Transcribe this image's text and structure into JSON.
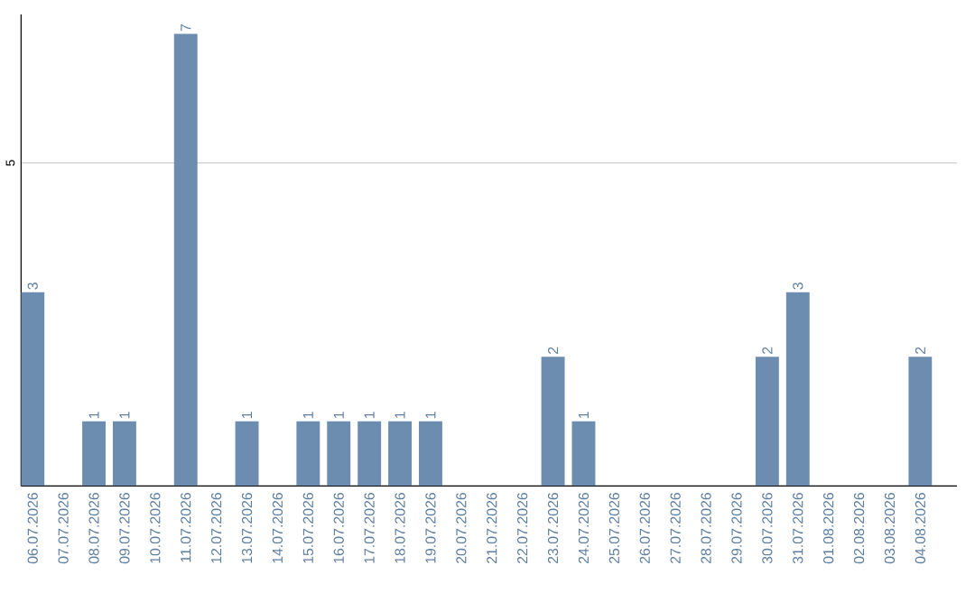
{
  "chart_data": {
    "type": "bar",
    "categories": [
      "06.07.2026",
      "07.07.2026",
      "08.07.2026",
      "09.07.2026",
      "10.07.2026",
      "11.07.2026",
      "12.07.2026",
      "13.07.2026",
      "14.07.2026",
      "15.07.2026",
      "16.07.2026",
      "17.07.2026",
      "18.07.2026",
      "19.07.2026",
      "20.07.2026",
      "21.07.2026",
      "22.07.2026",
      "23.07.2026",
      "24.07.2026",
      "25.07.2026",
      "26.07.2026",
      "27.07.2026",
      "28.07.2026",
      "29.07.2026",
      "30.07.2026",
      "31.07.2026",
      "01.08.2026",
      "02.08.2026",
      "03.08.2026",
      "04.08.2026"
    ],
    "values": [
      3,
      0,
      1,
      1,
      0,
      7,
      0,
      1,
      0,
      1,
      1,
      1,
      1,
      1,
      0,
      0,
      0,
      2,
      1,
      0,
      0,
      0,
      0,
      0,
      2,
      3,
      0,
      0,
      0,
      2
    ],
    "value_labels": [
      "3",
      null,
      "1",
      "1",
      null,
      "7",
      null,
      "1",
      null,
      "1",
      "1",
      "1",
      "1",
      "1",
      null,
      null,
      null,
      "2",
      "1",
      null,
      null,
      null,
      null,
      null,
      "2",
      "3",
      null,
      null,
      null,
      "2"
    ],
    "color": "#6d8db0",
    "ylim": [
      0,
      7.3
    ],
    "yticks": [
      5
    ],
    "grid": "y"
  }
}
